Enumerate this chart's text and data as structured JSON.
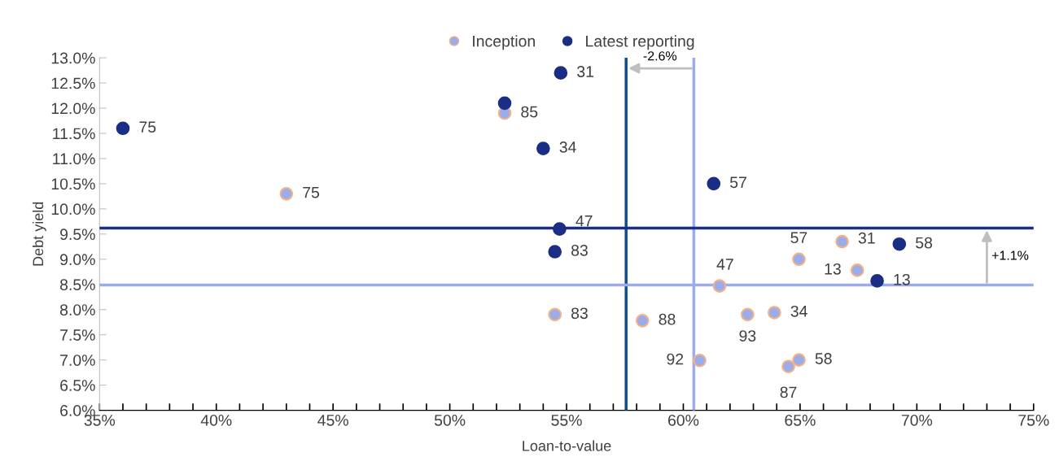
{
  "chart_data": {
    "type": "scatter",
    "xlabel": "Loan-to-value",
    "ylabel": "Debt yield",
    "legend": "top",
    "marker": "circle",
    "grid": false,
    "series": [
      {
        "name": "Inception",
        "color": "#9aacec",
        "x": [
          52.35,
          43.0,
          66.8,
          64.95,
          67.45,
          61.55,
          54.5,
          58.25,
          62.75,
          63.9,
          60.7,
          64.95,
          64.5
        ],
        "values": [
          11.9,
          10.3,
          9.35,
          9.0,
          8.78,
          8.47,
          7.9,
          7.78,
          7.9,
          7.94,
          6.99,
          7.0,
          6.87
        ]
      },
      {
        "name": "Latest reporting",
        "color": "#1a2e85",
        "x": [
          36.0,
          54.75,
          52.35,
          54.0,
          61.3,
          54.7,
          54.5,
          69.25,
          68.3
        ],
        "values": [
          11.6,
          12.7,
          12.1,
          11.2,
          10.5,
          9.6,
          9.15,
          9.3,
          8.57
        ]
      }
    ],
    "annotations": [
      {
        "text": "85",
        "x": 52.35,
        "y": 11.9
      },
      {
        "text": "75",
        "x": 43.0,
        "y": 10.3
      },
      {
        "text": "31",
        "x": 66.8,
        "y": 9.35
      },
      {
        "text": "57",
        "x": 64.95,
        "y": 9.0
      },
      {
        "text": "13",
        "x": 67.45,
        "y": 8.78
      },
      {
        "text": "47",
        "x": 61.55,
        "y": 8.47
      },
      {
        "text": "83",
        "x": 54.5,
        "y": 7.9
      },
      {
        "text": "88",
        "x": 58.25,
        "y": 7.78
      },
      {
        "text": "93",
        "x": 62.75,
        "y": 7.9
      },
      {
        "text": "34",
        "x": 63.9,
        "y": 7.94
      },
      {
        "text": "92",
        "x": 60.7,
        "y": 6.99
      },
      {
        "text": "58",
        "x": 64.95,
        "y": 7.0
      },
      {
        "text": "87",
        "x": 64.5,
        "y": 6.87
      },
      {
        "text": "75",
        "x": 36.0,
        "y": 11.6
      },
      {
        "text": "31",
        "x": 54.75,
        "y": 12.7
      },
      {
        "text": "34",
        "x": 54.0,
        "y": 11.2
      },
      {
        "text": "57",
        "x": 61.3,
        "y": 10.5
      },
      {
        "text": "47",
        "x": 54.7,
        "y": 9.6
      },
      {
        "text": "83",
        "x": 54.5,
        "y": 9.15
      },
      {
        "text": "58",
        "x": 69.25,
        "y": 9.3
      },
      {
        "text": "13",
        "x": 68.3,
        "y": 8.57
      },
      "-2.6%",
      "+1.1%"
    ],
    "ref_lines": [
      {
        "axis": "x",
        "value": 57.55,
        "color": "#0b4f8a"
      },
      {
        "axis": "x",
        "value": 60.45,
        "color": "#9aacec"
      },
      {
        "axis": "y",
        "value": 9.62,
        "color": "#1a2e85"
      },
      {
        "axis": "y",
        "value": 8.49,
        "color": "#9aacec"
      }
    ],
    "xlim": [
      35,
      75
    ],
    "ylim": [
      6.0,
      13.0
    ],
    "xticks": [
      {
        "value": 35,
        "label": "35%"
      },
      {
        "value": 36,
        "label": null
      },
      {
        "value": 37,
        "label": null
      },
      {
        "value": 38,
        "label": null
      },
      {
        "value": 39,
        "label": null
      },
      {
        "value": 40,
        "label": "40%"
      },
      {
        "value": 41,
        "label": null
      },
      {
        "value": 42,
        "label": null
      },
      {
        "value": 43,
        "label": null
      },
      {
        "value": 44,
        "label": null
      },
      {
        "value": 45,
        "label": "45%"
      },
      {
        "value": 46,
        "label": null
      },
      {
        "value": 47,
        "label": null
      },
      {
        "value": 48,
        "label": null
      },
      {
        "value": 49,
        "label": null
      },
      {
        "value": 50,
        "label": "50%"
      },
      {
        "value": 51,
        "label": null
      },
      {
        "value": 52,
        "label": null
      },
      {
        "value": 53,
        "label": null
      },
      {
        "value": 54,
        "label": null
      },
      {
        "value": 55,
        "label": "55%"
      },
      {
        "value": 56,
        "label": null
      },
      {
        "value": 57,
        "label": null
      },
      {
        "value": 58,
        "label": null
      },
      {
        "value": 59,
        "label": null
      },
      {
        "value": 60,
        "label": "60%"
      },
      {
        "value": 61,
        "label": null
      },
      {
        "value": 62,
        "label": null
      },
      {
        "value": 63,
        "label": null
      },
      {
        "value": 64,
        "label": null
      },
      {
        "value": 65,
        "label": "65%"
      },
      {
        "value": 66,
        "label": null
      },
      {
        "value": 67,
        "label": null
      },
      {
        "value": 68,
        "label": null
      },
      {
        "value": 69,
        "label": null
      },
      {
        "value": 70,
        "label": "70%"
      },
      {
        "value": 71,
        "label": null
      },
      {
        "value": 72,
        "label": null
      },
      {
        "value": 73,
        "label": null
      },
      {
        "value": 74,
        "label": null
      },
      {
        "value": 75,
        "label": "75%"
      }
    ],
    "yticks": [
      {
        "value": 6.0,
        "label": "6.0%"
      },
      {
        "value": 6.5,
        "label": "6.5%"
      },
      {
        "value": 7.0,
        "label": "7.0%"
      },
      {
        "value": 7.5,
        "label": "7.5%"
      },
      {
        "value": 8.0,
        "label": "8.0%"
      },
      {
        "value": 8.5,
        "label": "8.5%"
      },
      {
        "value": 9.0,
        "label": "9.0%"
      },
      {
        "value": 9.5,
        "label": "9.5%"
      },
      {
        "value": 10.0,
        "label": "10.0%"
      },
      {
        "value": 10.5,
        "label": "10.5%"
      },
      {
        "value": 11.0,
        "label": "11.0%"
      },
      {
        "value": 11.5,
        "label": "11.5%"
      },
      {
        "value": 12.0,
        "label": "12.0%"
      },
      {
        "value": 12.5,
        "label": "12.5%"
      },
      {
        "value": 13.0,
        "label": "13.0%"
      }
    ]
  }
}
